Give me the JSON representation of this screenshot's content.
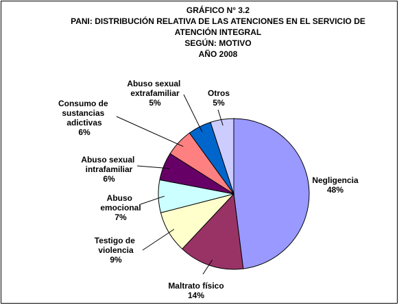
{
  "chart_data": {
    "type": "pie",
    "title": [
      "GRÁFICO N° 3.2",
      "PANI: DISTRIBUCIÓN RELATIVA DE LAS ATENCIONES EN EL SERVICIO DE",
      "ATENCIÓN INTEGRAL",
      "SEGÚN: MOTIVO",
      "AÑO 2008"
    ],
    "categories": [
      "Negligencia",
      "Maltrato físico",
      "Testigo de violencia",
      "Abuso emocional",
      "Abuso sexual intrafamiliar",
      "Consumo de sustancias adictivas",
      "Abuso sexual extrafamiliar",
      "Otros"
    ],
    "values": [
      48,
      14,
      9,
      7,
      6,
      6,
      5,
      5
    ],
    "value_labels": [
      "48%",
      "14%",
      "9%",
      "7%",
      "6%",
      "6%",
      "5%",
      "5%"
    ],
    "colors": [
      "#9999ff",
      "#993366",
      "#ffffcc",
      "#ccffff",
      "#660066",
      "#ff8080",
      "#0066cc",
      "#ccccff"
    ]
  }
}
